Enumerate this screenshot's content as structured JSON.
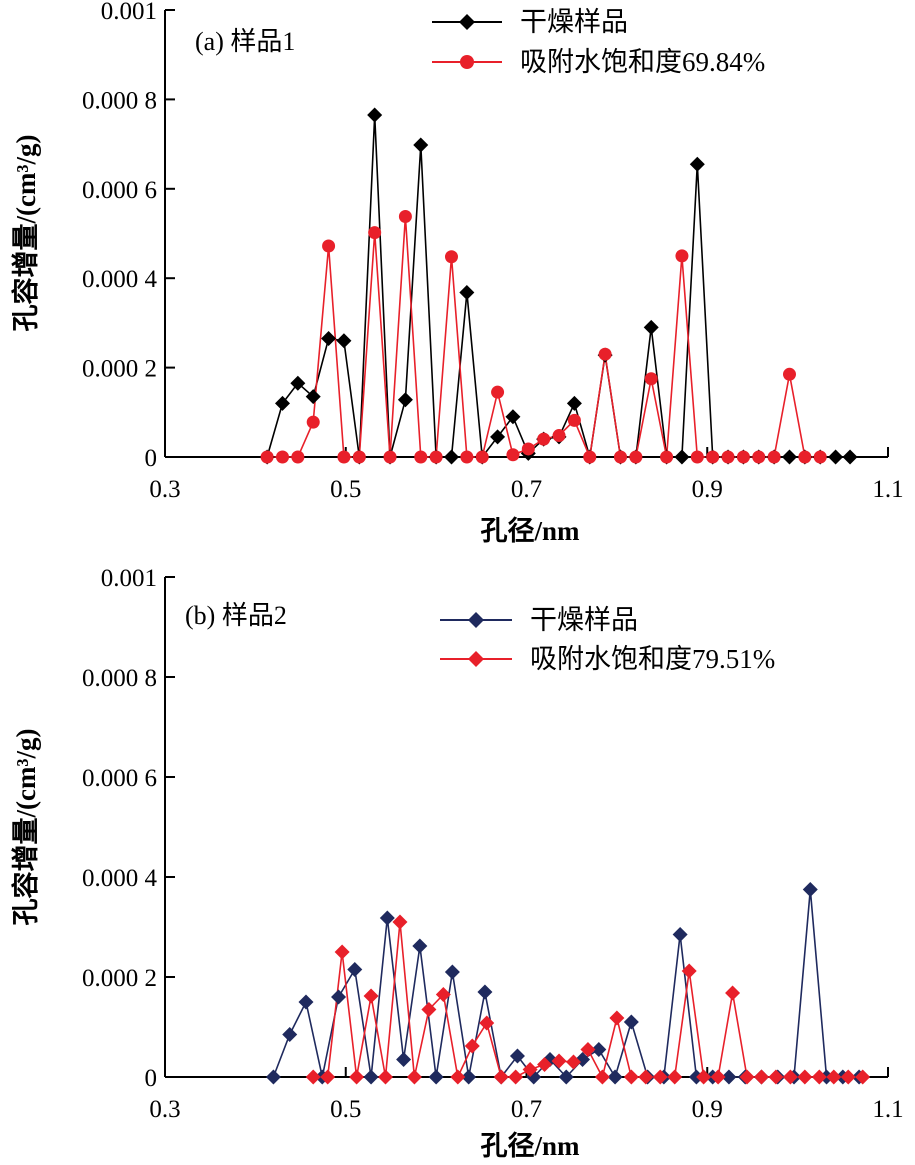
{
  "chart_data": [
    {
      "type": "line",
      "panel_label": "(a) 样品1",
      "xlabel": "孔径/nm",
      "ylabel": "孔容增量/(cm³/g)",
      "xlim": [
        0.3,
        1.1
      ],
      "ylim": [
        0,
        0.001
      ],
      "x_ticks": [
        "0.3",
        "0.5",
        "0.7",
        "0.9",
        "1.1"
      ],
      "y_ticks": [
        "0",
        "0.000 2",
        "0.000 4",
        "0.000 6",
        "0.000 8",
        "0.001"
      ],
      "legend_position": "top-right",
      "colors": {
        "dry": "#000000",
        "wet": "#e8202a"
      },
      "series": [
        {
          "name": "干燥样品",
          "marker": "diamond",
          "color": "#000000",
          "points": [
            [
              0.413,
              0
            ],
            [
              0.43,
              0.00012
            ],
            [
              0.447,
              0.000165
            ],
            [
              0.464,
              0.000135
            ],
            [
              0.481,
              0.000265
            ],
            [
              0.498,
              0.00026
            ],
            [
              0.515,
              0
            ],
            [
              0.532,
              0.000765
            ],
            [
              0.549,
              0
            ],
            [
              0.566,
              0.000128
            ],
            [
              0.583,
              0.000698
            ],
            [
              0.6,
              0
            ],
            [
              0.617,
              0
            ],
            [
              0.634,
              0.000368
            ],
            [
              0.651,
              0
            ],
            [
              0.668,
              4.5e-05
            ],
            [
              0.685,
              9e-05
            ],
            [
              0.702,
              8e-06
            ],
            [
              0.719,
              4e-05
            ],
            [
              0.736,
              4.5e-05
            ],
            [
              0.753,
              0.00012
            ],
            [
              0.77,
              0
            ],
            [
              0.787,
              0.000228
            ],
            [
              0.804,
              0
            ],
            [
              0.821,
              0
            ],
            [
              0.838,
              0.00029
            ],
            [
              0.855,
              0
            ],
            [
              0.872,
              0
            ],
            [
              0.889,
              0.000655
            ],
            [
              0.906,
              0
            ],
            [
              0.923,
              0
            ],
            [
              0.94,
              0
            ],
            [
              0.957,
              0
            ],
            [
              0.974,
              0
            ],
            [
              0.991,
              0
            ],
            [
              1.008,
              0
            ],
            [
              1.025,
              0
            ],
            [
              1.042,
              0
            ],
            [
              1.058,
              0
            ]
          ]
        },
        {
          "name": "吸附水饱和度69.84%",
          "marker": "circle",
          "color": "#e8202a",
          "points": [
            [
              0.413,
              0
            ],
            [
              0.43,
              0
            ],
            [
              0.447,
              0
            ],
            [
              0.464,
              7.8e-05
            ],
            [
              0.481,
              0.000472
            ],
            [
              0.498,
              0
            ],
            [
              0.515,
              0
            ],
            [
              0.532,
              0.000502
            ],
            [
              0.549,
              0
            ],
            [
              0.566,
              0.000538
            ],
            [
              0.583,
              0
            ],
            [
              0.6,
              0
            ],
            [
              0.617,
              0.000448
            ],
            [
              0.634,
              0
            ],
            [
              0.651,
              0
            ],
            [
              0.668,
              0.000145
            ],
            [
              0.685,
              5e-06
            ],
            [
              0.702,
              1.8e-05
            ],
            [
              0.719,
              4e-05
            ],
            [
              0.736,
              4.8e-05
            ],
            [
              0.753,
              8.2e-05
            ],
            [
              0.77,
              0
            ],
            [
              0.787,
              0.00023
            ],
            [
              0.804,
              0
            ],
            [
              0.821,
              0
            ],
            [
              0.838,
              0.000175
            ],
            [
              0.855,
              0
            ],
            [
              0.872,
              0.00045
            ],
            [
              0.889,
              0
            ],
            [
              0.906,
              0
            ],
            [
              0.923,
              0
            ],
            [
              0.94,
              0
            ],
            [
              0.957,
              0
            ],
            [
              0.974,
              0
            ],
            [
              0.991,
              0.000185
            ],
            [
              1.008,
              0
            ],
            [
              1.025,
              0
            ]
          ]
        }
      ]
    },
    {
      "type": "line",
      "panel_label": "(b) 样品2",
      "xlabel": "孔径/nm",
      "ylabel": "孔容增量/(cm³/g)",
      "xlim": [
        0.3,
        1.1
      ],
      "ylim": [
        0,
        0.001
      ],
      "x_ticks": [
        "0.3",
        "0.5",
        "0.7",
        "0.9",
        "1.1"
      ],
      "y_ticks": [
        "0",
        "0.000 2",
        "0.000 4",
        "0.000 6",
        "0.000 8",
        "0.001"
      ],
      "legend_position": "top-right",
      "colors": {
        "dry": "#1f2a5e",
        "wet": "#e8202a"
      },
      "series": [
        {
          "name": "干燥样品",
          "marker": "diamond",
          "color": "#1f2a5e",
          "points": [
            [
              0.42,
              0
            ],
            [
              0.438,
              8.5e-05
            ],
            [
              0.456,
              0.00015
            ],
            [
              0.474,
              0
            ],
            [
              0.492,
              0.00016
            ],
            [
              0.51,
              0.000215
            ],
            [
              0.528,
              0
            ],
            [
              0.546,
              0.000318
            ],
            [
              0.564,
              3.5e-05
            ],
            [
              0.582,
              0.000262
            ],
            [
              0.6,
              0
            ],
            [
              0.618,
              0.00021
            ],
            [
              0.636,
              0
            ],
            [
              0.654,
              0.00017
            ],
            [
              0.672,
              0
            ],
            [
              0.69,
              4.2e-05
            ],
            [
              0.708,
              0
            ],
            [
              0.726,
              3.5e-05
            ],
            [
              0.744,
              0
            ],
            [
              0.762,
              3.5e-05
            ],
            [
              0.78,
              5.5e-05
            ],
            [
              0.798,
              0
            ],
            [
              0.816,
              0.00011
            ],
            [
              0.834,
              0
            ],
            [
              0.852,
              0
            ],
            [
              0.87,
              0.000285
            ],
            [
              0.888,
              0
            ],
            [
              0.906,
              0
            ],
            [
              0.924,
              0
            ],
            [
              0.942,
              0
            ],
            [
              0.96,
              0
            ],
            [
              0.978,
              0
            ],
            [
              0.996,
              0
            ],
            [
              1.014,
              0.000375
            ],
            [
              1.032,
              0
            ],
            [
              1.05,
              0
            ],
            [
              1.068,
              0
            ]
          ]
        },
        {
          "name": "吸附水饱和度79.51%",
          "marker": "diamond",
          "color": "#e8202a",
          "points": [
            [
              0.464,
              0
            ],
            [
              0.48,
              0
            ],
            [
              0.496,
              0.00025
            ],
            [
              0.512,
              0
            ],
            [
              0.528,
              0.000162
            ],
            [
              0.544,
              0
            ],
            [
              0.56,
              0.00031
            ],
            [
              0.576,
              0
            ],
            [
              0.592,
              0.000135
            ],
            [
              0.608,
              0.000165
            ],
            [
              0.624,
              0
            ],
            [
              0.64,
              6.2e-05
            ],
            [
              0.656,
              0.000108
            ],
            [
              0.672,
              0
            ],
            [
              0.688,
              0
            ],
            [
              0.704,
              1.5e-05
            ],
            [
              0.72,
              2.5e-05
            ],
            [
              0.736,
              3.2e-05
            ],
            [
              0.752,
              3e-05
            ],
            [
              0.768,
              5.5e-05
            ],
            [
              0.784,
              0
            ],
            [
              0.8,
              0.000118
            ],
            [
              0.816,
              0
            ],
            [
              0.832,
              0
            ],
            [
              0.848,
              0
            ],
            [
              0.864,
              0
            ],
            [
              0.88,
              0.000212
            ],
            [
              0.896,
              0
            ],
            [
              0.912,
              0
            ],
            [
              0.928,
              0.000168
            ],
            [
              0.944,
              0
            ],
            [
              0.96,
              0
            ],
            [
              0.976,
              0
            ],
            [
              0.992,
              0
            ],
            [
              1.008,
              0
            ],
            [
              1.024,
              0
            ],
            [
              1.04,
              0
            ],
            [
              1.056,
              0
            ],
            [
              1.072,
              0
            ]
          ]
        }
      ]
    }
  ]
}
